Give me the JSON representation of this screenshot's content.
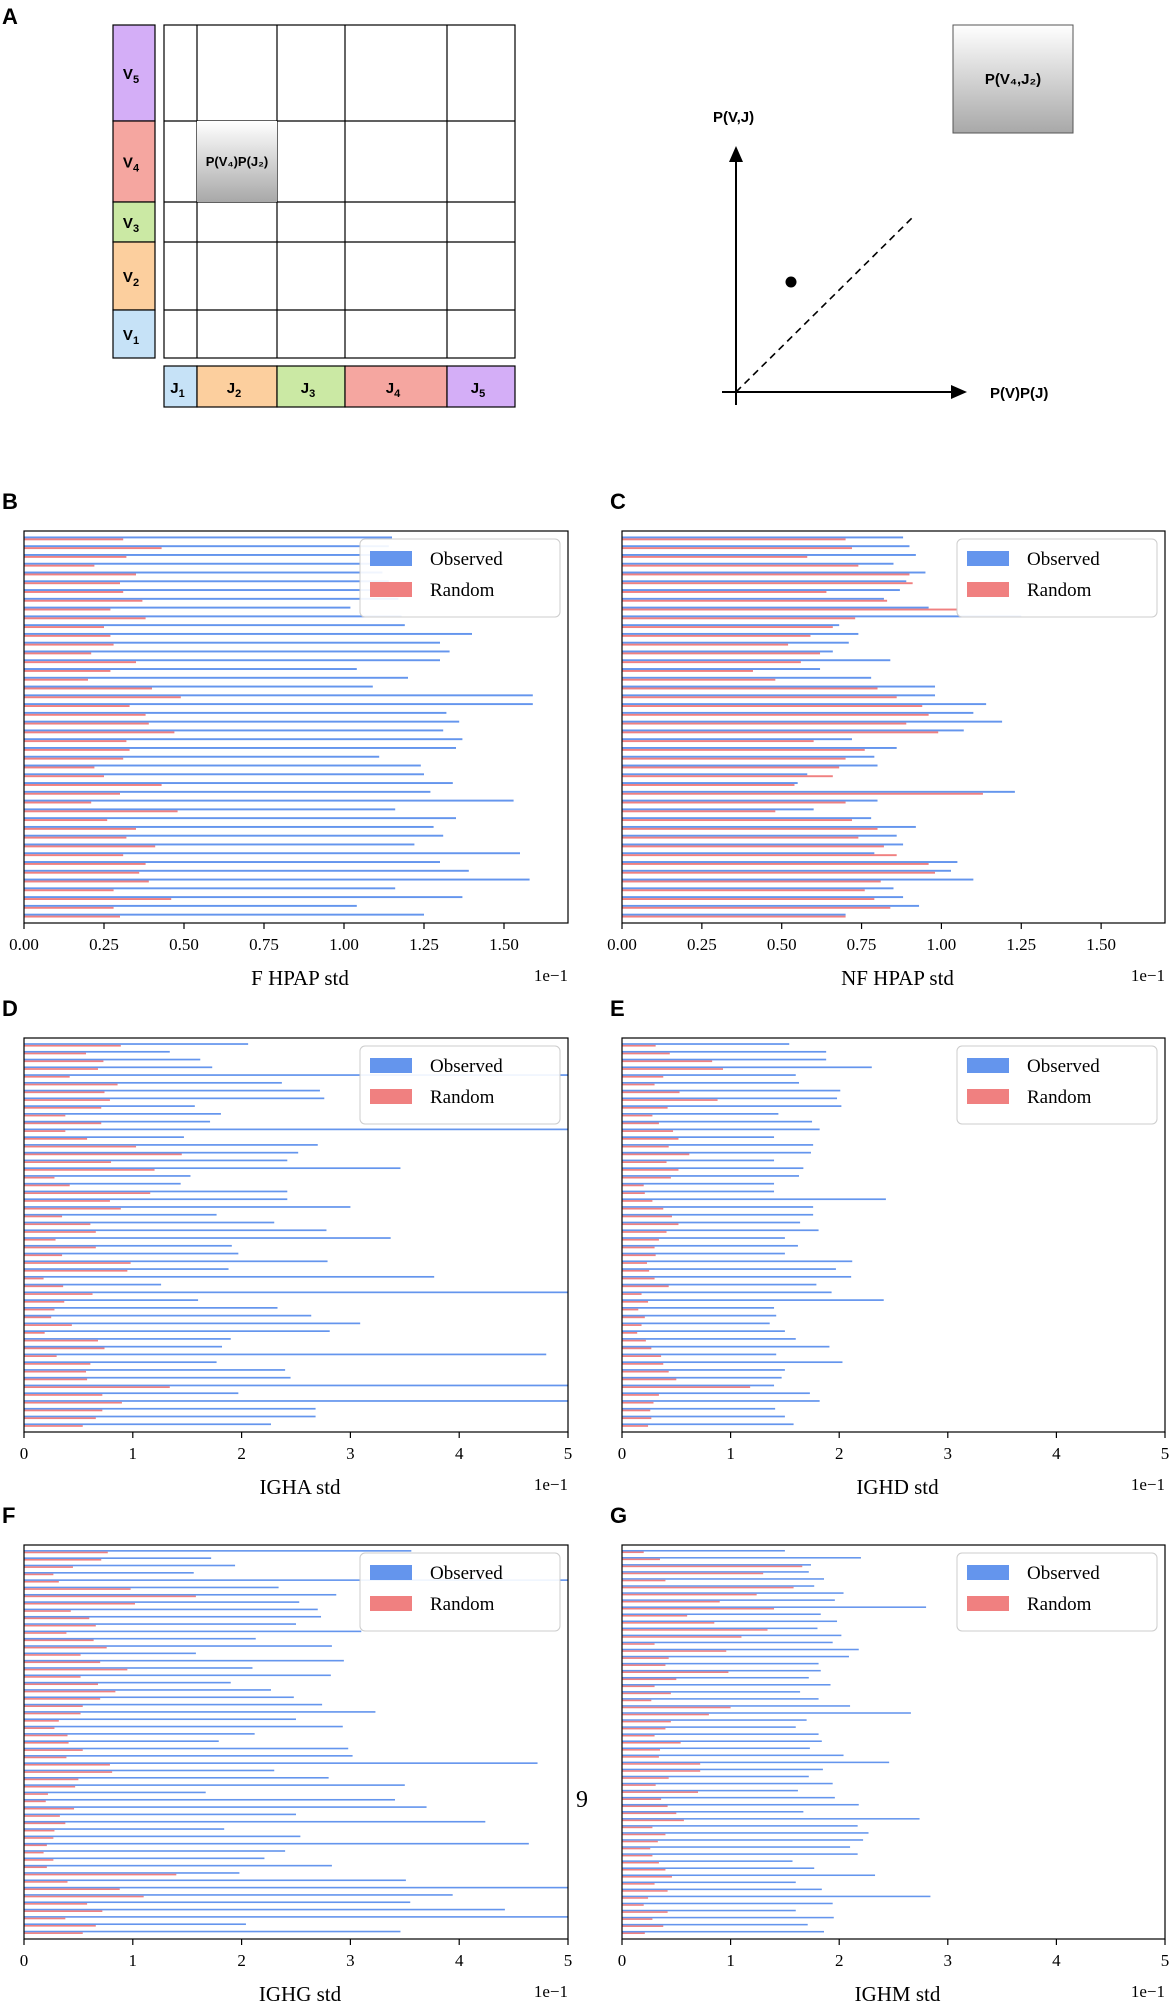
{
  "page_number": "9",
  "panel_a": {
    "panel_label": "A",
    "v_labels": [
      [
        "V",
        "5"
      ],
      [
        "V",
        "4"
      ],
      [
        "V",
        "3"
      ],
      [
        "V",
        "2"
      ],
      [
        "V",
        "1"
      ]
    ],
    "j_labels": [
      [
        "J",
        "1"
      ],
      [
        "J",
        "2"
      ],
      [
        "J",
        "3"
      ],
      [
        "J",
        "4"
      ],
      [
        "J",
        "5"
      ]
    ],
    "v_colors": [
      "#d4aef7",
      "#f5a6a0",
      "#cbe9a4",
      "#fccf9e",
      "#c6e2f7"
    ],
    "j_colors": [
      "#c6e2f7",
      "#fccf9e",
      "#cbe9a4",
      "#f5a6a0",
      "#d4aef7"
    ],
    "cell_label": "P(V₄)P(J₂)",
    "box_label": "P(V₄,J₂)",
    "y_axis_label": "P(V,J)",
    "x_axis_label": "P(V)P(J)"
  },
  "colors": {
    "observed": "#6495ed",
    "random": "#f08080"
  },
  "chart_data": [
    {
      "panel": "B",
      "type": "bar",
      "orientation": "horizontal",
      "xlabel": "F HPAP std",
      "scale_label": "1e−1",
      "xlim": [
        0,
        1.7
      ],
      "ticks": [
        "0.00",
        "0.25",
        "0.50",
        "0.75",
        "1.00",
        "1.25",
        "1.50"
      ],
      "tick_values": [
        0,
        0.25,
        0.5,
        0.75,
        1.0,
        1.25,
        1.5
      ],
      "legend": [
        "Observed",
        "Random"
      ],
      "legend_position": "top-right",
      "series": [
        {
          "name": "Observed",
          "values": [
            1.15,
            1.14,
            1.15,
            1.18,
            1.12,
            1.14,
            1.16,
            1.17,
            1.02,
            1.18,
            1.19,
            1.4,
            1.3,
            1.33,
            1.3,
            1.04,
            1.2,
            1.09,
            1.59,
            1.59,
            1.32,
            1.36,
            1.31,
            1.37,
            1.35,
            1.11,
            1.24,
            1.25,
            1.34,
            1.27,
            1.53,
            1.16,
            1.35,
            1.28,
            1.31,
            1.22,
            1.55,
            1.3,
            1.39,
            1.58,
            1.16,
            1.37,
            1.04,
            1.25
          ]
        },
        {
          "name": "Random",
          "values": [
            0.31,
            0.43,
            0.32,
            0.22,
            0.35,
            0.3,
            0.31,
            0.37,
            0.27,
            0.38,
            0.25,
            0.27,
            0.28,
            0.21,
            0.35,
            0.27,
            0.2,
            0.4,
            0.49,
            0.33,
            0.38,
            0.39,
            0.47,
            0.32,
            0.33,
            0.31,
            0.22,
            0.25,
            0.43,
            0.3,
            0.21,
            0.48,
            0.26,
            0.35,
            0.32,
            0.41,
            0.31,
            0.38,
            0.36,
            0.39,
            0.28,
            0.46,
            0.28,
            0.3
          ]
        }
      ]
    },
    {
      "panel": "C",
      "type": "bar",
      "orientation": "horizontal",
      "xlabel": "NF HPAP std",
      "scale_label": "1e−1",
      "xlim": [
        0,
        1.7
      ],
      "ticks": [
        "0.00",
        "0.25",
        "0.50",
        "0.75",
        "1.00",
        "1.25",
        "1.50"
      ],
      "tick_values": [
        0,
        0.25,
        0.5,
        0.75,
        1.0,
        1.25,
        1.5
      ],
      "legend": [
        "Observed",
        "Random"
      ],
      "legend_position": "top-right",
      "series": [
        {
          "name": "Observed",
          "values": [
            0.88,
            0.9,
            0.92,
            0.85,
            0.95,
            0.89,
            0.87,
            0.82,
            0.96,
            1.25,
            0.68,
            0.74,
            0.71,
            0.66,
            0.84,
            0.62,
            0.78,
            0.98,
            0.98,
            1.14,
            1.1,
            1.19,
            1.07,
            0.72,
            0.86,
            0.79,
            0.8,
            0.58,
            0.55,
            1.23,
            0.8,
            0.6,
            0.78,
            0.92,
            0.86,
            0.88,
            0.79,
            1.05,
            1.03,
            1.1,
            0.85,
            0.88,
            0.93,
            0.7
          ]
        },
        {
          "name": "Random",
          "values": [
            0.7,
            0.72,
            0.58,
            0.74,
            0.9,
            0.91,
            0.64,
            0.83,
            1.05,
            0.73,
            0.66,
            0.59,
            0.52,
            0.62,
            0.56,
            0.41,
            0.48,
            0.8,
            0.86,
            0.94,
            0.96,
            0.89,
            0.99,
            0.6,
            0.76,
            0.7,
            0.68,
            0.66,
            0.54,
            1.13,
            0.7,
            0.48,
            0.72,
            0.8,
            0.74,
            0.82,
            0.86,
            0.96,
            0.98,
            0.81,
            0.76,
            0.79,
            0.84,
            0.7
          ]
        }
      ]
    },
    {
      "panel": "D",
      "type": "bar",
      "orientation": "horizontal",
      "xlabel": "IGHA std",
      "scale_label": "1e−1",
      "xlim": [
        0,
        5
      ],
      "ticks": [
        "0",
        "1",
        "2",
        "3",
        "4",
        "5"
      ],
      "tick_values": [
        0,
        1,
        2,
        3,
        4,
        5
      ],
      "legend": [
        "Observed",
        "Random"
      ],
      "legend_position": "top-right",
      "series": [
        {
          "name": "Observed",
          "values": [
            2.06,
            1.34,
            1.62,
            1.73,
            5.0,
            2.37,
            2.72,
            2.76,
            1.57,
            1.81,
            1.71,
            5.0,
            1.47,
            2.7,
            2.52,
            2.42,
            3.46,
            1.53,
            1.44,
            2.42,
            2.42,
            3.0,
            1.77,
            2.3,
            2.78,
            3.37,
            1.91,
            1.97,
            2.79,
            1.88,
            3.77,
            1.26,
            5.0,
            1.6,
            2.33,
            2.64,
            3.09,
            2.81,
            1.9,
            1.82,
            4.8,
            1.77,
            2.4,
            2.45,
            5.0,
            1.97,
            5.0,
            2.68,
            2.68,
            2.27
          ]
        },
        {
          "name": "Random",
          "values": [
            0.89,
            0.57,
            0.73,
            0.68,
            0.42,
            0.86,
            0.74,
            0.79,
            0.71,
            0.38,
            0.71,
            0.38,
            0.58,
            1.03,
            1.45,
            0.8,
            1.2,
            0.28,
            0.42,
            1.16,
            0.79,
            0.89,
            0.35,
            0.61,
            0.66,
            0.29,
            0.66,
            0.35,
            0.98,
            0.95,
            0.18,
            0.36,
            0.63,
            0.37,
            0.28,
            0.25,
            0.44,
            0.19,
            0.68,
            0.74,
            0.3,
            0.61,
            0.57,
            0.58,
            1.34,
            0.72,
            0.9,
            0.72,
            0.66,
            0.54
          ]
        }
      ]
    },
    {
      "panel": "E",
      "type": "bar",
      "orientation": "horizontal",
      "xlabel": "IGHD std",
      "scale_label": "1e−1",
      "xlim": [
        0,
        5
      ],
      "ticks": [
        "0",
        "1",
        "2",
        "3",
        "4",
        "5"
      ],
      "tick_values": [
        0,
        1,
        2,
        3,
        4,
        5
      ],
      "legend": [
        "Observed",
        "Random"
      ],
      "legend_position": "top-right",
      "series": [
        {
          "name": "Observed",
          "values": [
            1.54,
            1.88,
            1.88,
            2.3,
            1.6,
            1.63,
            2.01,
            1.98,
            2.02,
            1.44,
            1.75,
            1.82,
            1.4,
            1.76,
            1.74,
            1.4,
            1.67,
            1.63,
            1.4,
            1.4,
            2.43,
            1.76,
            1.76,
            1.64,
            1.81,
            1.5,
            1.62,
            1.5,
            2.12,
            1.97,
            2.11,
            1.79,
            1.93,
            2.41,
            1.4,
            1.42,
            1.36,
            1.5,
            1.6,
            1.91,
            1.42,
            2.03,
            1.5,
            1.47,
            1.4,
            1.73,
            1.82,
            1.41,
            1.5,
            1.58
          ]
        },
        {
          "name": "Random",
          "values": [
            0.31,
            0.44,
            0.83,
            0.93,
            0.38,
            0.3,
            0.53,
            0.88,
            0.42,
            0.28,
            0.34,
            0.47,
            0.52,
            0.43,
            0.62,
            0.41,
            0.52,
            0.45,
            0.2,
            0.21,
            0.28,
            0.38,
            0.46,
            0.52,
            0.41,
            0.34,
            0.3,
            0.31,
            0.23,
            0.25,
            0.3,
            0.43,
            0.18,
            0.24,
            0.15,
            0.21,
            0.18,
            0.14,
            0.22,
            0.27,
            0.36,
            0.38,
            0.43,
            0.5,
            1.18,
            0.34,
            0.29,
            0.26,
            0.27,
            0.24
          ]
        }
      ]
    },
    {
      "panel": "F",
      "type": "bar",
      "orientation": "horizontal",
      "xlabel": "IGHG std",
      "scale_label": "1e−1",
      "xlim": [
        0,
        5
      ],
      "ticks": [
        "0",
        "1",
        "2",
        "3",
        "4",
        "5"
      ],
      "tick_values": [
        0,
        1,
        2,
        3,
        4,
        5
      ],
      "legend": [
        "Observed",
        "Random"
      ],
      "legend_position": "top-right",
      "series": [
        {
          "name": "Observed",
          "values": [
            3.56,
            1.72,
            1.94,
            1.56,
            5.0,
            2.34,
            2.87,
            2.53,
            2.7,
            2.73,
            2.5,
            3.1,
            2.13,
            2.83,
            1.58,
            2.94,
            2.1,
            2.82,
            1.9,
            2.27,
            2.48,
            2.74,
            3.23,
            2.5,
            2.93,
            2.12,
            1.79,
            2.98,
            3.02,
            4.72,
            2.3,
            2.8,
            3.5,
            1.67,
            3.41,
            3.7,
            2.5,
            4.24,
            1.84,
            2.54,
            4.64,
            2.4,
            2.21,
            2.83,
            1.98,
            3.51,
            5.0,
            3.94,
            3.55,
            4.42,
            5.0,
            2.04,
            3.46
          ]
        },
        {
          "name": "Random",
          "values": [
            0.77,
            0.71,
            0.45,
            0.27,
            0.32,
            0.98,
            1.58,
            1.02,
            0.43,
            0.6,
            0.66,
            0.39,
            0.64,
            0.76,
            0.52,
            0.7,
            0.95,
            0.52,
            0.68,
            0.84,
            0.7,
            0.54,
            0.52,
            0.32,
            0.28,
            0.4,
            0.41,
            0.54,
            0.39,
            0.79,
            0.81,
            0.5,
            0.47,
            0.22,
            0.2,
            0.46,
            0.33,
            0.38,
            0.28,
            0.27,
            0.21,
            0.18,
            0.27,
            0.21,
            1.4,
            0.4,
            0.88,
            1.1,
            0.58,
            0.72,
            0.38,
            0.66,
            0.54
          ]
        }
      ]
    },
    {
      "panel": "G",
      "type": "bar",
      "orientation": "horizontal",
      "xlabel": "IGHM std",
      "scale_label": "1e−1",
      "xlim": [
        0,
        5
      ],
      "ticks": [
        "0",
        "1",
        "2",
        "3",
        "4",
        "5"
      ],
      "tick_values": [
        0,
        1,
        2,
        3,
        4,
        5
      ],
      "legend": [
        "Observed",
        "Random"
      ],
      "legend_position": "top-right",
      "series": [
        {
          "name": "Observed",
          "values": [
            1.5,
            2.2,
            1.74,
            1.72,
            1.86,
            1.77,
            2.04,
            1.96,
            2.8,
            1.83,
            1.98,
            1.8,
            2.02,
            1.94,
            2.18,
            2.09,
            1.81,
            1.83,
            1.72,
            1.92,
            1.64,
            1.81,
            2.1,
            2.66,
            1.7,
            1.6,
            1.81,
            1.84,
            1.73,
            2.04,
            2.46,
            1.85,
            1.72,
            1.94,
            1.62,
            1.96,
            2.18,
            1.67,
            2.74,
            2.17,
            2.27,
            2.22,
            2.1,
            2.17,
            1.57,
            1.77,
            2.33,
            1.6,
            1.84,
            2.84,
            1.94,
            1.6,
            1.95,
            1.71,
            1.86
          ]
        },
        {
          "name": "Random",
          "values": [
            0.2,
            0.35,
            1.66,
            1.3,
            0.4,
            1.58,
            1.24,
            0.9,
            1.4,
            0.6,
            0.85,
            1.34,
            1.1,
            0.3,
            0.96,
            0.43,
            0.4,
            0.98,
            0.5,
            0.3,
            0.45,
            0.27,
            1.0,
            0.8,
            0.45,
            0.4,
            0.3,
            0.54,
            0.35,
            0.34,
            0.72,
            0.72,
            0.43,
            0.31,
            0.7,
            0.36,
            0.42,
            0.5,
            0.57,
            0.28,
            0.4,
            0.33,
            0.26,
            0.28,
            0.34,
            0.4,
            0.46,
            0.3,
            0.42,
            0.24,
            0.2,
            0.42,
            0.28,
            0.38,
            0.21
          ]
        }
      ]
    }
  ]
}
